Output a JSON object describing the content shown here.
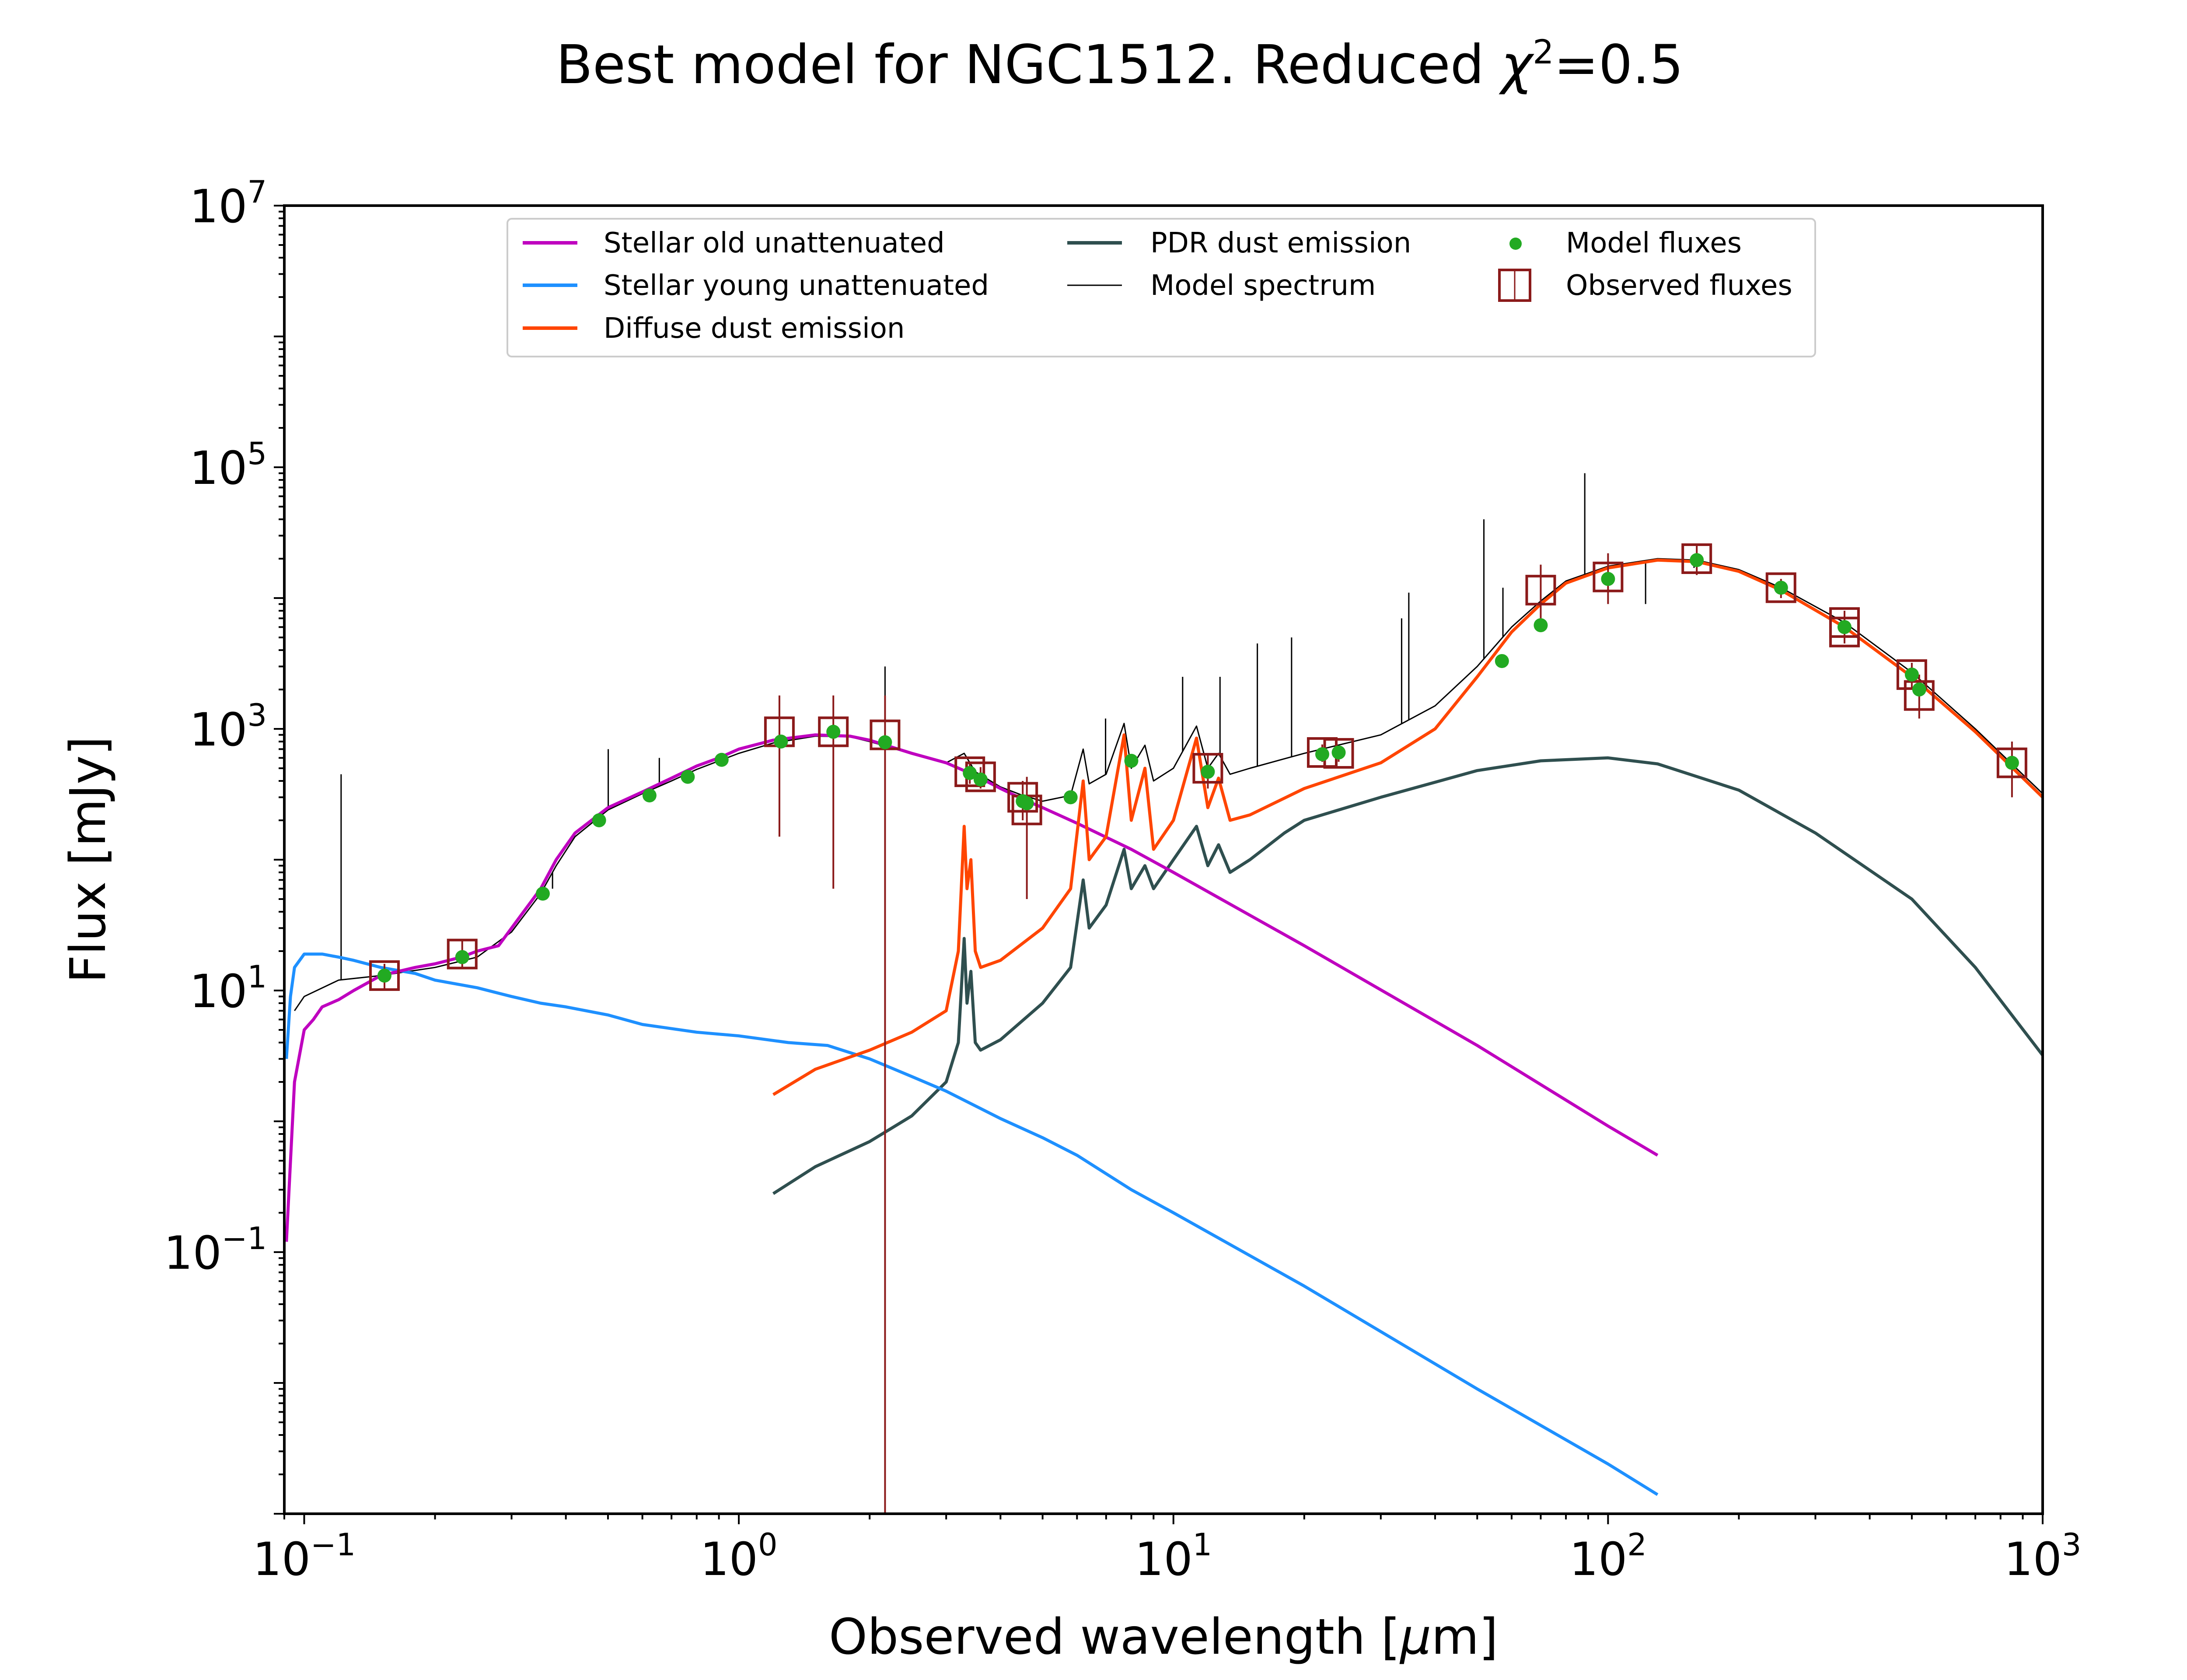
{
  "chart_data": {
    "type": "line",
    "title_prefix": "Best model for NGC1512. Reduced ",
    "title_chi": "χ",
    "title_exp": "2",
    "title_suffix": "=0.5",
    "xlabel_prefix": "Observed wavelength [",
    "xlabel_mu": "μ",
    "xlabel_suffix": "m]",
    "ylabel": "Flux [mJy]",
    "xscale": "log",
    "yscale": "log",
    "xlim": [
      0.09,
      1000
    ],
    "ylim": [
      0.001,
      10000000
    ],
    "grid": false,
    "legend_position": "top",
    "x_ticks": [
      {
        "value": 0.1,
        "base": "10",
        "exp": "−1"
      },
      {
        "value": 1,
        "base": "10",
        "exp": "0"
      },
      {
        "value": 10,
        "base": "10",
        "exp": "1"
      },
      {
        "value": 100,
        "base": "10",
        "exp": "2"
      },
      {
        "value": 1000,
        "base": "10",
        "exp": "3"
      }
    ],
    "y_ticks": [
      {
        "value": 0.1,
        "base": "10",
        "exp": "−1"
      },
      {
        "value": 10,
        "base": "10",
        "exp": "1"
      },
      {
        "value": 1000,
        "base": "10",
        "exp": "3"
      },
      {
        "value": 100000,
        "base": "10",
        "exp": "5"
      },
      {
        "value": 10000000,
        "base": "10",
        "exp": "7"
      }
    ],
    "series": [
      {
        "key": "stellar_old",
        "name": "Stellar old unattenuated",
        "color": "#bf00bf",
        "points": [
          [
            0.091,
            0.12
          ],
          [
            0.095,
            2.0
          ],
          [
            0.1,
            5.0
          ],
          [
            0.105,
            6.0
          ],
          [
            0.11,
            7.5
          ],
          [
            0.12,
            8.5
          ],
          [
            0.13,
            10.0
          ],
          [
            0.15,
            13.0
          ],
          [
            0.18,
            15.0
          ],
          [
            0.2,
            16.0
          ],
          [
            0.23,
            18.0
          ],
          [
            0.25,
            20.0
          ],
          [
            0.28,
            22.0
          ],
          [
            0.3,
            30.0
          ],
          [
            0.35,
            60.0
          ],
          [
            0.38,
            100.0
          ],
          [
            0.42,
            160.0
          ],
          [
            0.5,
            250.0
          ],
          [
            0.6,
            330.0
          ],
          [
            0.7,
            420.0
          ],
          [
            0.8,
            520.0
          ],
          [
            0.9,
            600.0
          ],
          [
            1.0,
            700.0
          ],
          [
            1.2,
            820.0
          ],
          [
            1.5,
            900.0
          ],
          [
            1.8,
            880.0
          ],
          [
            2.0,
            820.0
          ],
          [
            2.5,
            650.0
          ],
          [
            3.0,
            550.0
          ],
          [
            3.5,
            440.0
          ],
          [
            4.0,
            350.0
          ],
          [
            4.5,
            290.0
          ],
          [
            5.0,
            250.0
          ],
          [
            6.0,
            190.0
          ],
          [
            8.0,
            120.0
          ],
          [
            10.0,
            80.0
          ],
          [
            20.0,
            22.0
          ],
          [
            50.0,
            3.8
          ],
          [
            100.0,
            0.92
          ],
          [
            130.0,
            0.55
          ]
        ]
      },
      {
        "key": "stellar_young",
        "name": "Stellar young unattenuated",
        "color": "#1e90ff",
        "points": [
          [
            0.091,
            3.0
          ],
          [
            0.093,
            9.0
          ],
          [
            0.095,
            15.0
          ],
          [
            0.1,
            19.0
          ],
          [
            0.11,
            19.0
          ],
          [
            0.12,
            18.0
          ],
          [
            0.13,
            17.0
          ],
          [
            0.15,
            15.0
          ],
          [
            0.18,
            13.5
          ],
          [
            0.2,
            12.0
          ],
          [
            0.25,
            10.5
          ],
          [
            0.3,
            9.0
          ],
          [
            0.35,
            8.0
          ],
          [
            0.4,
            7.5
          ],
          [
            0.5,
            6.5
          ],
          [
            0.6,
            5.5
          ],
          [
            0.8,
            4.8
          ],
          [
            1.0,
            4.5
          ],
          [
            1.3,
            4.0
          ],
          [
            1.6,
            3.8
          ],
          [
            2.0,
            3.0
          ],
          [
            2.5,
            2.2
          ],
          [
            3.0,
            1.7
          ],
          [
            4.0,
            1.05
          ],
          [
            5.0,
            0.75
          ],
          [
            6.0,
            0.55
          ],
          [
            8.0,
            0.3
          ],
          [
            10.0,
            0.2
          ],
          [
            20.0,
            0.055
          ],
          [
            50.0,
            0.009
          ],
          [
            100.0,
            0.0024
          ],
          [
            130.0,
            0.0014
          ]
        ]
      },
      {
        "key": "diffuse_dust",
        "name": "Diffuse dust emission",
        "color": "#ff4500",
        "points": [
          [
            1.2,
            1.6
          ],
          [
            1.5,
            2.5
          ],
          [
            2.0,
            3.5
          ],
          [
            2.5,
            4.8
          ],
          [
            3.0,
            7.0
          ],
          [
            3.2,
            20.0
          ],
          [
            3.3,
            180.0
          ],
          [
            3.35,
            60.0
          ],
          [
            3.42,
            100.0
          ],
          [
            3.5,
            20.0
          ],
          [
            3.6,
            15.0
          ],
          [
            4.0,
            17.0
          ],
          [
            5.0,
            30.0
          ],
          [
            5.8,
            60.0
          ],
          [
            6.2,
            400.0
          ],
          [
            6.4,
            100.0
          ],
          [
            7.0,
            150.0
          ],
          [
            7.7,
            900.0
          ],
          [
            8.0,
            200.0
          ],
          [
            8.6,
            500.0
          ],
          [
            9.0,
            120.0
          ],
          [
            10.0,
            200.0
          ],
          [
            11.3,
            850.0
          ],
          [
            12.0,
            250.0
          ],
          [
            12.7,
            420.0
          ],
          [
            13.5,
            200.0
          ],
          [
            15.0,
            220.0
          ],
          [
            20.0,
            350.0
          ],
          [
            30.0,
            550.0
          ],
          [
            40.0,
            1000.0
          ],
          [
            50.0,
            2500.0
          ],
          [
            60.0,
            5500.0
          ],
          [
            70.0,
            9000.0
          ],
          [
            80.0,
            13000.0
          ],
          [
            100.0,
            17000.0
          ],
          [
            130.0,
            19500.0
          ],
          [
            160.0,
            19000.0
          ],
          [
            200.0,
            16000.0
          ],
          [
            250.0,
            11500.0
          ],
          [
            350.0,
            6000.0
          ],
          [
            500.0,
            2500.0
          ],
          [
            700.0,
            950.0
          ],
          [
            1000.0,
            300.0
          ]
        ]
      },
      {
        "key": "pdr_dust",
        "name": "PDR dust emission",
        "color": "#2f4f4f",
        "points": [
          [
            1.2,
            0.28
          ],
          [
            1.5,
            0.45
          ],
          [
            2.0,
            0.7
          ],
          [
            2.5,
            1.1
          ],
          [
            3.0,
            2.0
          ],
          [
            3.2,
            4.0
          ],
          [
            3.3,
            25.0
          ],
          [
            3.35,
            8.0
          ],
          [
            3.42,
            14.0
          ],
          [
            3.5,
            4.0
          ],
          [
            3.6,
            3.5
          ],
          [
            4.0,
            4.2
          ],
          [
            5.0,
            8.0
          ],
          [
            5.8,
            15.0
          ],
          [
            6.2,
            70.0
          ],
          [
            6.4,
            30.0
          ],
          [
            7.0,
            45.0
          ],
          [
            7.7,
            120.0
          ],
          [
            8.0,
            60.0
          ],
          [
            8.6,
            90.0
          ],
          [
            9.0,
            60.0
          ],
          [
            10.0,
            100.0
          ],
          [
            11.3,
            180.0
          ],
          [
            12.0,
            90.0
          ],
          [
            12.7,
            130.0
          ],
          [
            13.5,
            80.0
          ],
          [
            15.0,
            100.0
          ],
          [
            18.0,
            160.0
          ],
          [
            20.0,
            200.0
          ],
          [
            30.0,
            300.0
          ],
          [
            50.0,
            480.0
          ],
          [
            70.0,
            570.0
          ],
          [
            100.0,
            600.0
          ],
          [
            130.0,
            540.0
          ],
          [
            200.0,
            340.0
          ],
          [
            300.0,
            160.0
          ],
          [
            500.0,
            50.0
          ],
          [
            700.0,
            15.0
          ],
          [
            1000.0,
            3.2
          ]
        ]
      },
      {
        "key": "model_spectrum",
        "name": "Model spectrum",
        "color": "#000000",
        "points": [
          [
            0.095,
            7.0
          ],
          [
            0.1,
            9.0
          ],
          [
            0.12,
            12.0
          ],
          [
            0.15,
            13.0
          ],
          [
            0.2,
            15.0
          ],
          [
            0.25,
            18.0
          ],
          [
            0.3,
            28.0
          ],
          [
            0.35,
            55.0
          ],
          [
            0.38,
            90.0
          ],
          [
            0.42,
            150.0
          ],
          [
            0.5,
            240.0
          ],
          [
            0.6,
            320.0
          ],
          [
            0.7,
            400.0
          ],
          [
            0.8,
            490.0
          ],
          [
            1.0,
            650.0
          ],
          [
            1.2,
            780.0
          ],
          [
            1.5,
            880.0
          ],
          [
            1.8,
            870.0
          ],
          [
            2.0,
            800.0
          ],
          [
            2.5,
            650.0
          ],
          [
            3.0,
            550.0
          ],
          [
            3.3,
            650.0
          ],
          [
            3.5,
            470.0
          ],
          [
            4.0,
            360.0
          ],
          [
            4.5,
            310.0
          ],
          [
            5.0,
            280.0
          ],
          [
            5.8,
            310.0
          ],
          [
            6.2,
            700.0
          ],
          [
            6.4,
            380.0
          ],
          [
            7.0,
            450.0
          ],
          [
            7.7,
            1100.0
          ],
          [
            8.0,
            500.0
          ],
          [
            8.6,
            750.0
          ],
          [
            9.0,
            400.0
          ],
          [
            10.0,
            500.0
          ],
          [
            11.3,
            1050.0
          ],
          [
            12.0,
            500.0
          ],
          [
            12.7,
            650.0
          ],
          [
            13.5,
            450.0
          ],
          [
            15.0,
            500.0
          ],
          [
            20.0,
            650.0
          ],
          [
            30.0,
            900.0
          ],
          [
            40.0,
            1500.0
          ],
          [
            50.0,
            3000.0
          ],
          [
            60.0,
            6000.0
          ],
          [
            70.0,
            9500.0
          ],
          [
            80.0,
            13500.0
          ],
          [
            100.0,
            17500.0
          ],
          [
            130.0,
            20000.0
          ],
          [
            160.0,
            19500.0
          ],
          [
            200.0,
            16500.0
          ],
          [
            250.0,
            12000.0
          ],
          [
            350.0,
            6500.0
          ],
          [
            500.0,
            2700.0
          ],
          [
            700.0,
            1000.0
          ],
          [
            1000.0,
            320.0
          ]
        ],
        "emission_lines": [
          [
            0.1216,
            450.0
          ],
          [
            0.3727,
            60.0
          ],
          [
            0.5007,
            700.0
          ],
          [
            0.6563,
            600.0
          ],
          [
            2.17,
            3000.0
          ],
          [
            6.98,
            1200.0
          ],
          [
            10.5,
            2500.0
          ],
          [
            12.8,
            2500.0
          ],
          [
            15.6,
            4500.0
          ],
          [
            18.7,
            5000.0
          ],
          [
            33.5,
            7000.0
          ],
          [
            34.8,
            11000.0
          ],
          [
            51.8,
            40000.0
          ],
          [
            57.3,
            12000.0
          ],
          [
            88.4,
            90000.0
          ],
          [
            122.0,
            9000.0
          ],
          [
            157.7,
            17000.0
          ]
        ]
      }
    ],
    "model_fluxes": {
      "name": "Model fluxes",
      "color": "#22aa22",
      "points": [
        [
          0.153,
          13.0
        ],
        [
          0.231,
          18.0
        ],
        [
          0.354,
          55.0
        ],
        [
          0.477,
          200.0
        ],
        [
          0.623,
          310.0
        ],
        [
          0.763,
          430.0
        ],
        [
          0.913,
          580.0
        ],
        [
          1.25,
          800.0
        ],
        [
          1.65,
          950.0
        ],
        [
          2.17,
          790.0
        ],
        [
          3.4,
          460.0
        ],
        [
          3.6,
          410.0
        ],
        [
          4.5,
          280.0
        ],
        [
          4.6,
          270.0
        ],
        [
          5.8,
          300.0
        ],
        [
          8.0,
          570.0
        ],
        [
          12.0,
          470.0
        ],
        [
          22.0,
          640.0
        ],
        [
          24.0,
          660.0
        ],
        [
          57.0,
          3300.0
        ],
        [
          70.0,
          6200.0
        ],
        [
          100.0,
          14000.0
        ],
        [
          160.0,
          19500.0
        ],
        [
          250.0,
          12000.0
        ],
        [
          350.0,
          6000.0
        ],
        [
          500.0,
          2600.0
        ],
        [
          520.0,
          2000.0
        ],
        [
          850.0,
          550.0
        ]
      ]
    },
    "observed_fluxes": {
      "name": "Observed fluxes",
      "color": "#8b1a1a",
      "points": [
        {
          "x": 0.153,
          "y": 13.0,
          "lo": 10.0,
          "hi": 16.0
        },
        {
          "x": 0.231,
          "y": 19.0,
          "lo": 15.0,
          "hi": 24.0
        },
        {
          "x": 1.24,
          "y": 950.0,
          "lo": 150.0,
          "hi": 1800.0
        },
        {
          "x": 1.65,
          "y": 950.0,
          "lo": 60.0,
          "hi": 1800.0
        },
        {
          "x": 2.17,
          "y": 900.0,
          "lo": 0.001,
          "hi": 1800.0
        },
        {
          "x": 3.4,
          "y": 470.0,
          "lo": 380.0,
          "hi": 560.0
        },
        {
          "x": 3.6,
          "y": 430.0,
          "lo": 350.0,
          "hi": 510.0
        },
        {
          "x": 4.5,
          "y": 300.0,
          "lo": 200.0,
          "hi": 400.0
        },
        {
          "x": 4.6,
          "y": 240.0,
          "lo": 50.0,
          "hi": 430.0
        },
        {
          "x": 12.0,
          "y": 500.0,
          "lo": 350.0,
          "hi": 650.0
        },
        {
          "x": 22.0,
          "y": 660.0,
          "lo": 560.0,
          "hi": 760.0
        },
        {
          "x": 24.0,
          "y": 650.0,
          "lo": 560.0,
          "hi": 740.0
        },
        {
          "x": 70.0,
          "y": 11500.0,
          "lo": 7000.0,
          "hi": 18000.0
        },
        {
          "x": 100.0,
          "y": 14500.0,
          "lo": 9000.0,
          "hi": 22000.0
        },
        {
          "x": 160.0,
          "y": 20000.0,
          "lo": 15000.0,
          "hi": 25000.0
        },
        {
          "x": 250.0,
          "y": 12000.0,
          "lo": 10000.0,
          "hi": 14000.0
        },
        {
          "x": 350.0,
          "y": 6500.0,
          "lo": 5200.0,
          "hi": 8000.0
        },
        {
          "x": 350.0,
          "y": 5500.0,
          "lo": 4500.0,
          "hi": 6800.0
        },
        {
          "x": 500.0,
          "y": 2600.0,
          "lo": 2000.0,
          "hi": 3200.0
        },
        {
          "x": 520.0,
          "y": 1800.0,
          "lo": 1200.0,
          "hi": 2600.0
        },
        {
          "x": 850.0,
          "y": 550.0,
          "lo": 300.0,
          "hi": 800.0
        }
      ]
    }
  }
}
